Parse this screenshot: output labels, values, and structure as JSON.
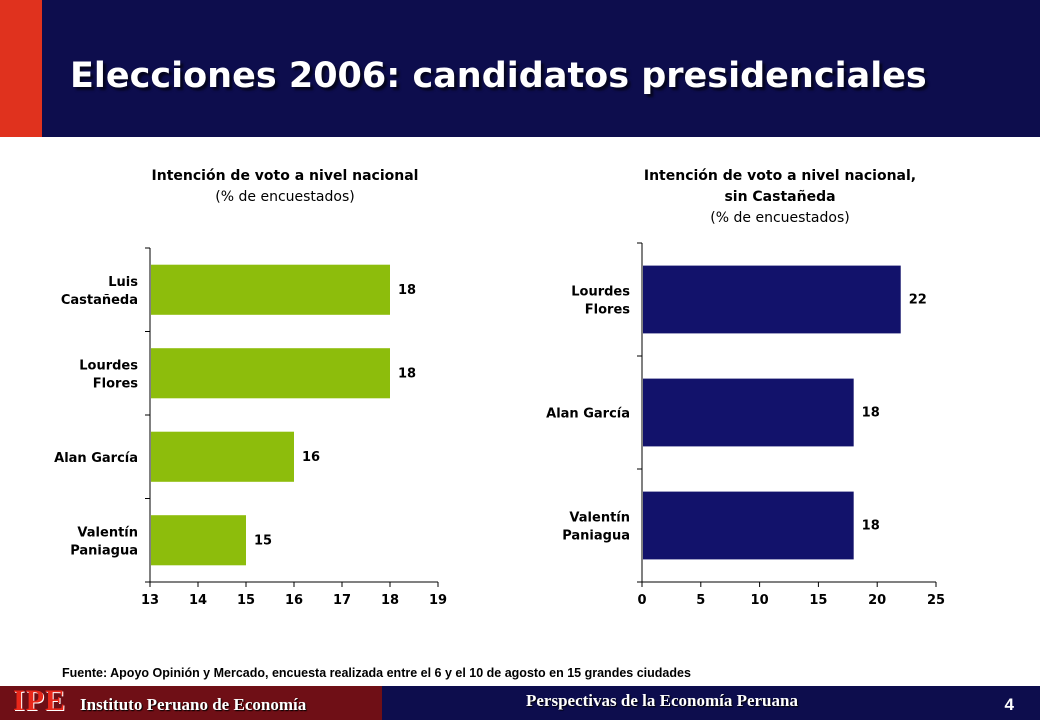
{
  "slide": {
    "title": "Elecciones 2006: candidatos presidenciales",
    "source": "Fuente: Apoyo Opinión y Mercado, encuesta realizada entre el 6 y el 10 de agosto en 15 grandes ciudades",
    "footer": {
      "logo": "IPE",
      "institution": "Instituto Peruano de Economía",
      "center_text": "Perspectivas de la Economía Peruana",
      "page_number": "4"
    },
    "colors": {
      "header_bg": "#0d0d4d",
      "accent_red": "#e0321e",
      "footer_left": "#6f0f16"
    }
  },
  "chart_data": [
    {
      "type": "bar",
      "orientation": "horizontal",
      "title": "Intención de voto a nivel nacional",
      "subtitle": "(% de encuestados)",
      "categories": [
        [
          "Luis",
          "Castañeda"
        ],
        [
          "Lourdes",
          "Flores"
        ],
        [
          "Alan García"
        ],
        [
          "Valentín",
          "Paniagua"
        ]
      ],
      "values": [
        18,
        18,
        16,
        15
      ],
      "xlim": [
        13,
        19
      ],
      "xticks": [
        13,
        14,
        15,
        16,
        17,
        18,
        19
      ],
      "color": "#8dbd0c",
      "data_labels": true,
      "grid": false
    },
    {
      "type": "bar",
      "orientation": "horizontal",
      "title": "Intención de voto a nivel nacional,",
      "title_line2": "sin Castañeda",
      "subtitle": "(% de encuestados)",
      "categories": [
        [
          "Lourdes",
          "Flores"
        ],
        [
          "Alan García"
        ],
        [
          "Valentín",
          "Paniagua"
        ]
      ],
      "values": [
        22,
        18,
        18
      ],
      "xlim": [
        0,
        25
      ],
      "xticks": [
        0,
        5,
        10,
        15,
        20,
        25
      ],
      "color": "#12126b",
      "data_labels": true,
      "grid": false
    }
  ]
}
